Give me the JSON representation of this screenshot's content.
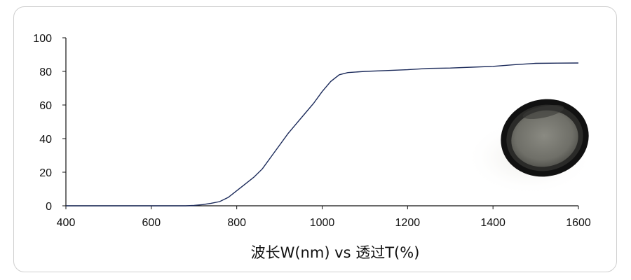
{
  "chart_data": {
    "type": "line",
    "title": "",
    "xlabel": "波长W(nm) vs 透过T(%)",
    "ylabel": "",
    "xlim": [
      400,
      1600
    ],
    "ylim": [
      0,
      100
    ],
    "x_ticks": [
      400,
      600,
      800,
      1000,
      1200,
      1400,
      1600
    ],
    "y_ticks": [
      0,
      20,
      40,
      60,
      80,
      100
    ],
    "grid": false,
    "legend": "none",
    "series": [
      {
        "color": "#1b2a5a",
        "points": [
          [
            400,
            0
          ],
          [
            500,
            0
          ],
          [
            600,
            0
          ],
          [
            680,
            0
          ],
          [
            700,
            0.2
          ],
          [
            720,
            0.7
          ],
          [
            740,
            1.5
          ],
          [
            760,
            2.5
          ],
          [
            780,
            5
          ],
          [
            800,
            9
          ],
          [
            820,
            13
          ],
          [
            840,
            17
          ],
          [
            860,
            22
          ],
          [
            880,
            29
          ],
          [
            900,
            36
          ],
          [
            920,
            43
          ],
          [
            940,
            49
          ],
          [
            960,
            55
          ],
          [
            980,
            61
          ],
          [
            1000,
            68
          ],
          [
            1020,
            74
          ],
          [
            1040,
            78
          ],
          [
            1060,
            79.3
          ],
          [
            1100,
            80
          ],
          [
            1150,
            80.5
          ],
          [
            1200,
            81
          ],
          [
            1250,
            81.8
          ],
          [
            1300,
            82
          ],
          [
            1350,
            82.5
          ],
          [
            1400,
            83
          ],
          [
            1450,
            84
          ],
          [
            1500,
            84.8
          ],
          [
            1550,
            84.9
          ],
          [
            1600,
            85
          ]
        ]
      }
    ]
  },
  "product_image": {
    "name": "filter-lens-photo"
  }
}
